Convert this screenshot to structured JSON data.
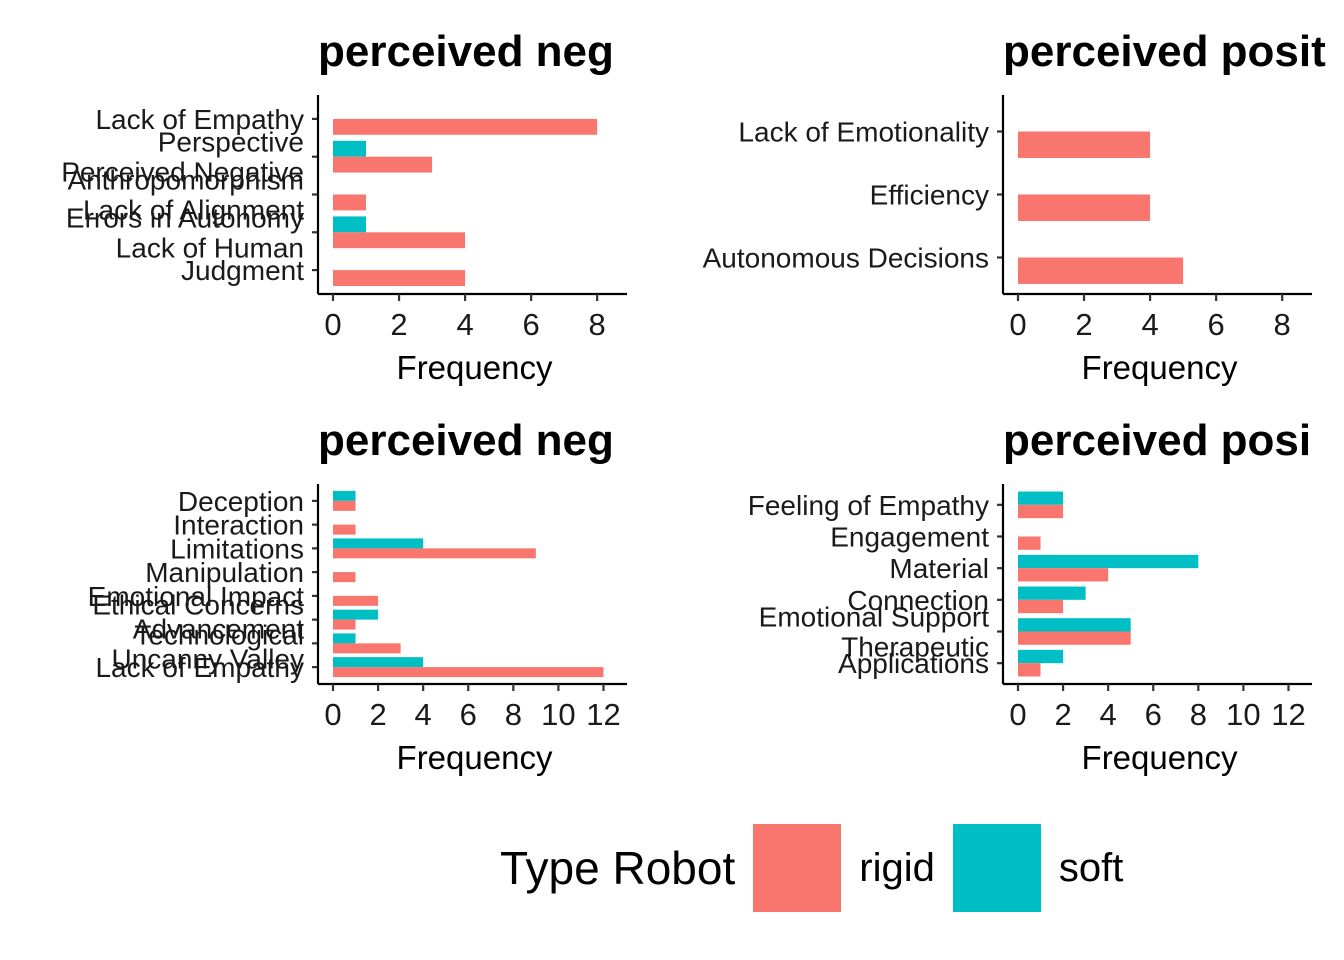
{
  "legend": {
    "title": "Type Robot",
    "items": [
      {
        "label": "rigid",
        "color": "#F8766D"
      },
      {
        "label": "soft",
        "color": "#00BFC4"
      }
    ]
  },
  "chart_data": [
    {
      "type": "bar",
      "orientation": "horizontal",
      "title": "perceived neg",
      "xlabel": "Frequency",
      "xlim": [
        0,
        8.6
      ],
      "xticks": [
        0,
        2,
        4,
        6,
        8
      ],
      "categories": [
        [
          "Lack of Empathy"
        ],
        [
          "Perspective",
          "Perceived Negative"
        ],
        [
          "Anthropomorphism",
          "Lack of Alignment"
        ],
        [
          "Errors in Autonomy",
          "Lack of Human"
        ],
        [
          "Judgment"
        ]
      ],
      "series": [
        {
          "name": "rigid",
          "values": [
            8,
            3,
            1,
            4,
            4
          ]
        },
        {
          "name": "soft",
          "values": [
            0,
            1,
            0,
            1,
            0
          ]
        }
      ]
    },
    {
      "type": "bar",
      "orientation": "horizontal",
      "title": "perceived posit",
      "xlabel": "Frequency",
      "xlim": [
        0,
        8.6
      ],
      "xticks": [
        0,
        2,
        4,
        6,
        8
      ],
      "categories": [
        [
          "Lack of Emotionality"
        ],
        [
          "Efficiency"
        ],
        [
          "Autonomous Decisions"
        ]
      ],
      "series": [
        {
          "name": "rigid",
          "values": [
            4,
            4,
            5
          ]
        },
        {
          "name": "soft",
          "values": [
            0,
            0,
            0
          ]
        }
      ]
    },
    {
      "type": "bar",
      "orientation": "horizontal",
      "title": "perceived neg",
      "xlabel": "Frequency",
      "xlim": [
        0,
        12.6
      ],
      "xticks": [
        0,
        2,
        4,
        6,
        8,
        10,
        12
      ],
      "categories": [
        [
          "Deception"
        ],
        [
          "Interaction"
        ],
        [
          "Limitations"
        ],
        [
          "Manipulation"
        ],
        [
          "Emotional Impact"
        ],
        [
          "Ethical Concerns",
          "Technological"
        ],
        [
          "Advancement",
          "Uncanny Valley"
        ],
        [
          "Lack of Empathy"
        ]
      ],
      "series": [
        {
          "name": "rigid",
          "values": [
            1,
            1,
            9,
            1,
            2,
            1,
            3,
            12
          ]
        },
        {
          "name": "soft",
          "values": [
            1,
            0,
            4,
            0,
            0,
            2,
            1,
            4
          ]
        }
      ]
    },
    {
      "type": "bar",
      "orientation": "horizontal",
      "title": "perceived posi",
      "xlabel": "Frequency",
      "xlim": [
        0,
        12.6
      ],
      "xticks": [
        0,
        2,
        4,
        6,
        8,
        10,
        12
      ],
      "categories": [
        [
          "Feeling of Empathy"
        ],
        [
          "Engagement"
        ],
        [
          "Material"
        ],
        [
          "Connection"
        ],
        [
          "Emotional Support",
          "Therapeutic"
        ],
        [
          "Applications"
        ]
      ],
      "series": [
        {
          "name": "rigid",
          "values": [
            2,
            1,
            4,
            2,
            5,
            1
          ]
        },
        {
          "name": "soft",
          "values": [
            2,
            0,
            8,
            3,
            5,
            2
          ]
        }
      ]
    }
  ]
}
